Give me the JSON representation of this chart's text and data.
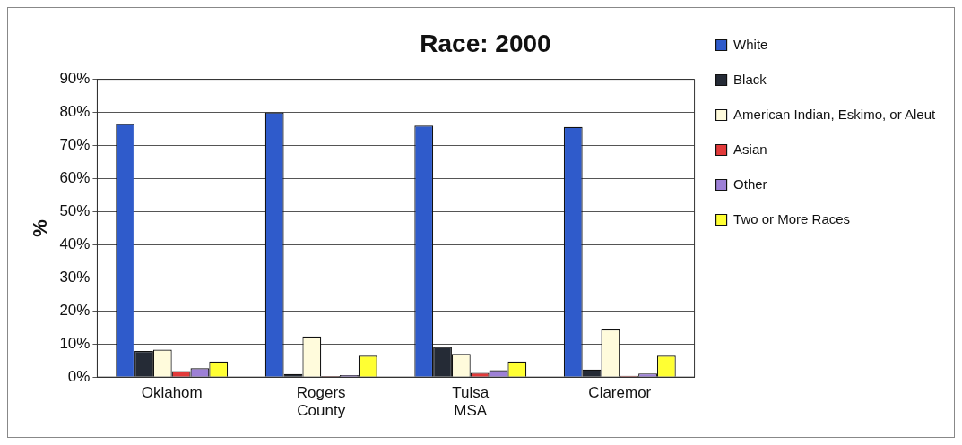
{
  "chart_data": {
    "type": "bar",
    "title": "Race: 2000",
    "ylabel": "%",
    "categories": [
      "Oklahom",
      "Rogers County",
      "Tulsa MSA",
      "Claremor"
    ],
    "series": [
      {
        "name": "White",
        "color": "#2f5bcb",
        "values": [
          76.5,
          80,
          76,
          75.6
        ]
      },
      {
        "name": "Black",
        "color": "#252b36",
        "values": [
          7.9,
          0.9,
          9.1,
          2.3
        ]
      },
      {
        "name": "American Indian, Eskimo, or Aleut",
        "color": "#fffbdc",
        "values": [
          8.3,
          12.3,
          7.0,
          14.4
        ]
      },
      {
        "name": "Asian",
        "color": "#e23a3a",
        "values": [
          1.8,
          0.3,
          1.3,
          0.4
        ]
      },
      {
        "name": "Other",
        "color": "#9d80d6",
        "values": [
          2.7,
          0.6,
          2.1,
          1.1
        ]
      },
      {
        "name": "Two or More Races",
        "color": "#ffff33",
        "values": [
          4.7,
          6.5,
          4.7,
          6.5
        ]
      }
    ],
    "ylim": [
      0,
      90
    ],
    "yticks": [
      {
        "value": 0,
        "label": "0%"
      },
      {
        "value": 10,
        "label": "10%"
      },
      {
        "value": 20,
        "label": "20%"
      },
      {
        "value": 30,
        "label": "30%"
      },
      {
        "value": 40,
        "label": "40%"
      },
      {
        "value": 50,
        "label": "50%"
      },
      {
        "value": 60,
        "label": "60%"
      },
      {
        "value": 70,
        "label": "70%"
      },
      {
        "value": 80,
        "label": "80%"
      },
      {
        "value": 90,
        "label": "90%"
      }
    ],
    "grid": "y",
    "legend": "right"
  }
}
